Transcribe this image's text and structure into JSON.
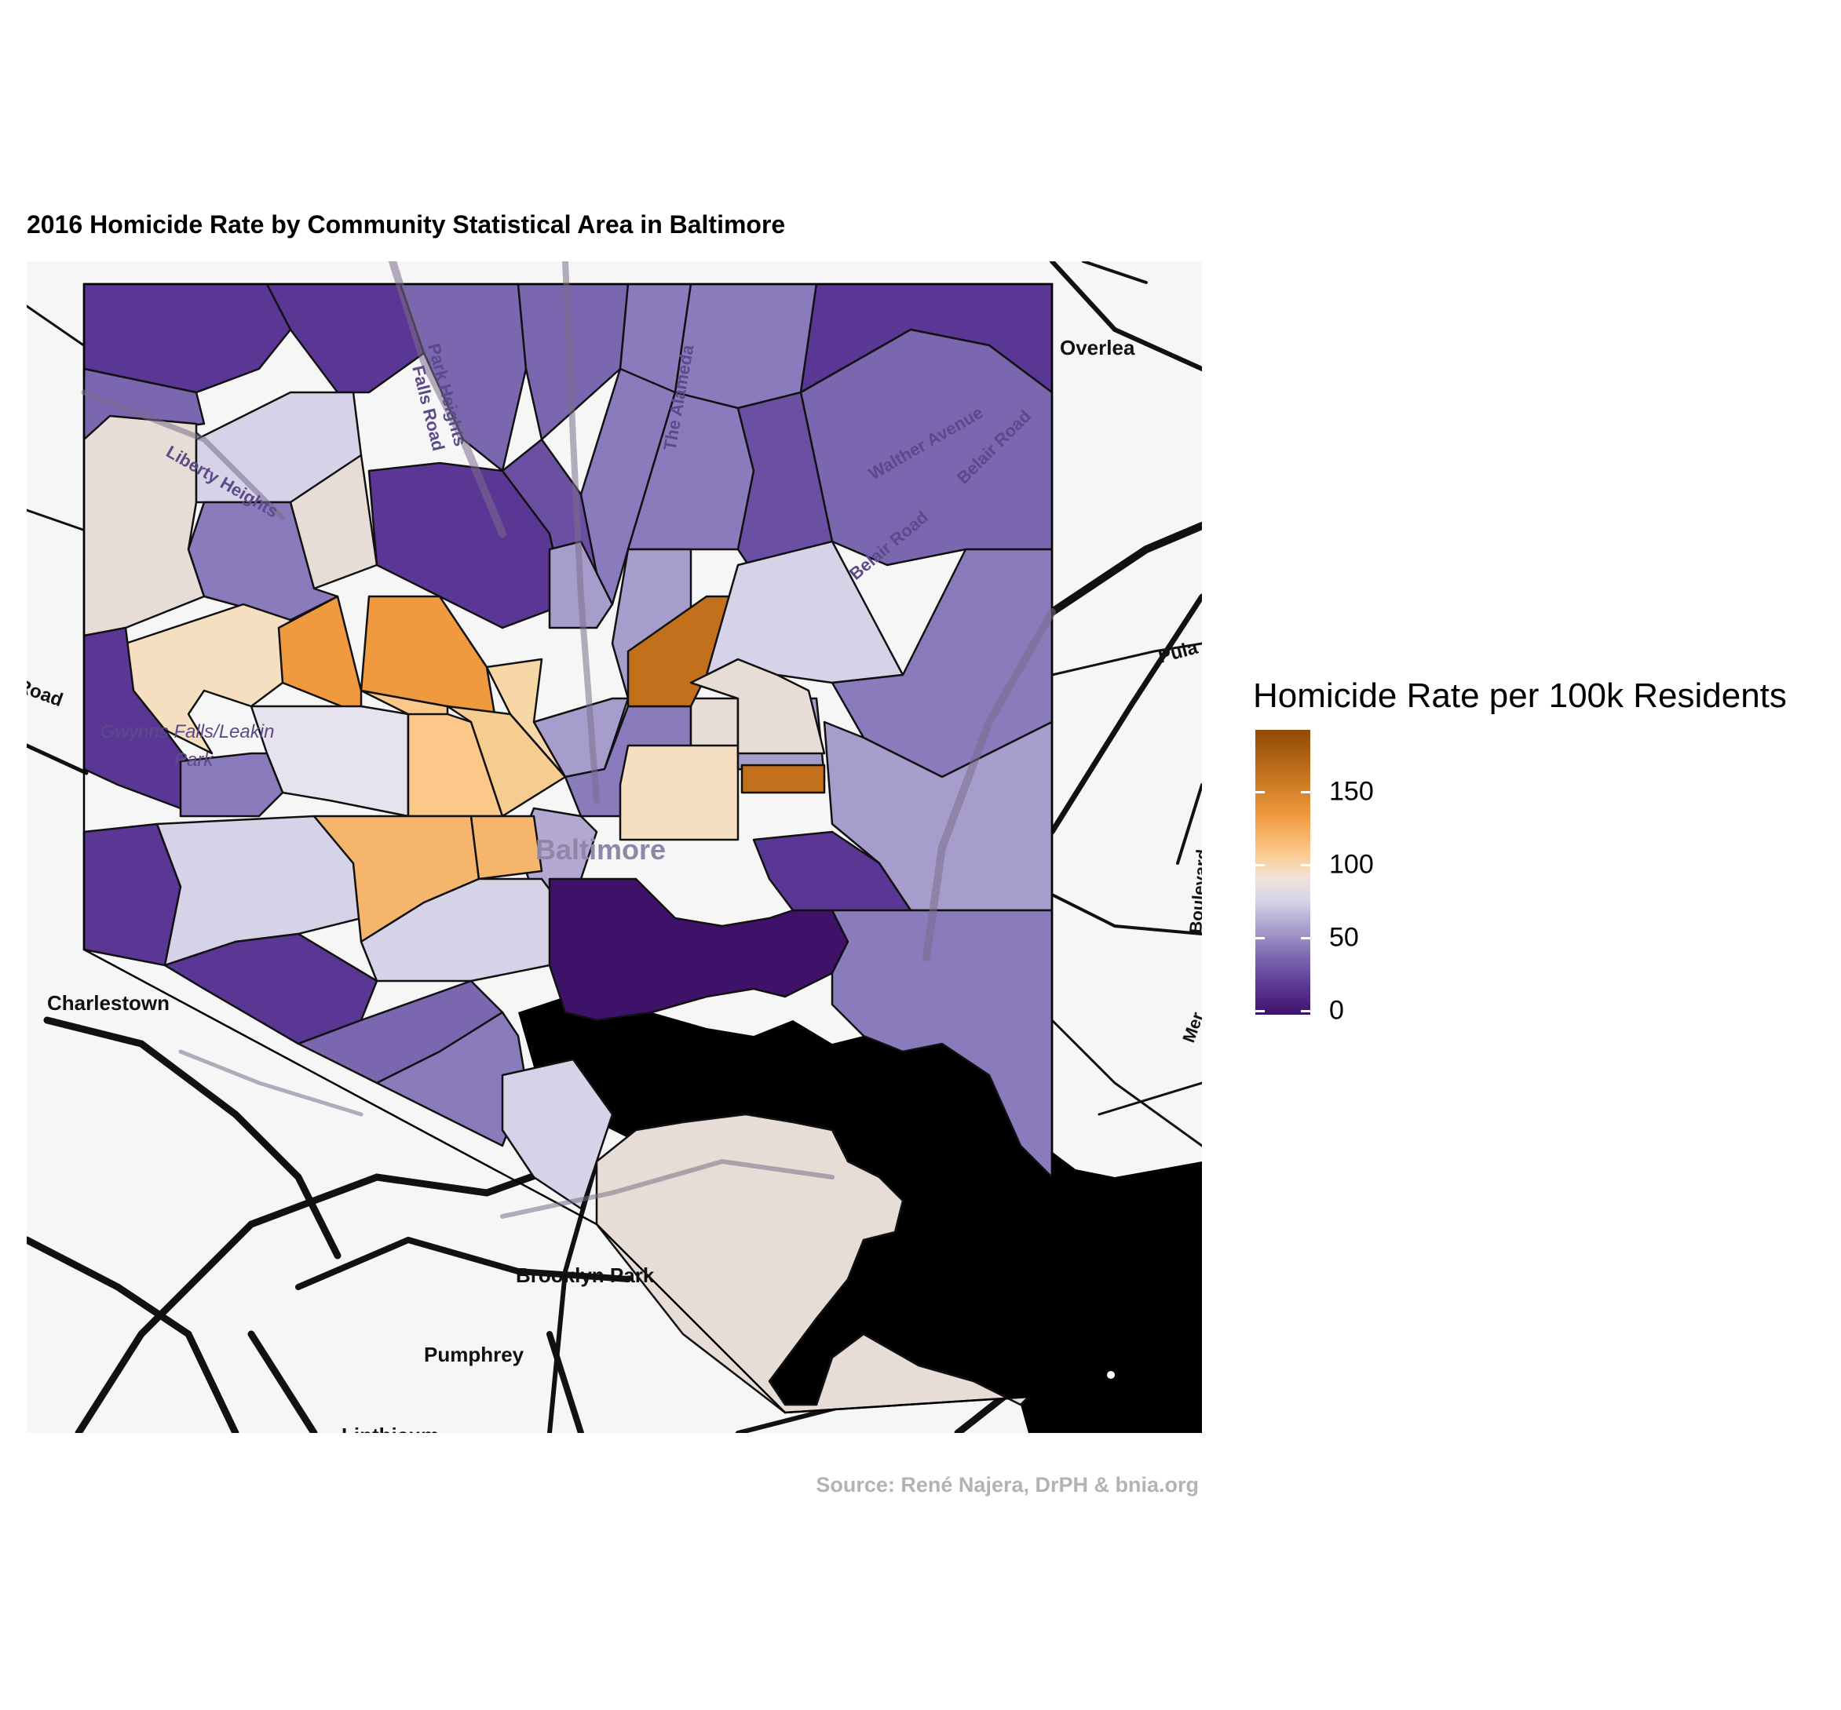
{
  "title": "2016 Homicide Rate by Community Statistical Area in Baltimore",
  "source": "Source: René Najera, DrPH & bnia.org",
  "legend": {
    "title": "Homicide Rate per 100k Residents",
    "ticks": [
      {
        "label": "150",
        "value": 150
      },
      {
        "label": "100",
        "value": 100
      },
      {
        "label": "50",
        "value": 50
      },
      {
        "label": "0",
        "value": 0
      }
    ],
    "range": [
      0,
      190
    ],
    "colors": [
      "#3e1268",
      "#7b66b0",
      "#d6d3e8",
      "#f1e4d8",
      "#fbc88a",
      "#ef9a3f",
      "#8f4a06"
    ]
  },
  "place_labels": {
    "overlea": "Overlea",
    "charlestown": "Charlestown",
    "brooklyn_park": "Brooklyn Park",
    "pumphrey": "Pumphrey",
    "baltimore": "Baltimore",
    "linthicum": "Linthicum",
    "pula": "Pula",
    "road_left": "Road",
    "gwynns_falls": "Gwynns Falls/Leakin",
    "park": "Park"
  },
  "road_labels": {
    "falls_road": "Falls Road",
    "the_alameda": "The Alameda",
    "walther_avenue": "Walther Avenue",
    "belair_road_1": "Belair Road",
    "belair_road_2": "Belair Road",
    "liberty_heights": "Liberty Heights",
    "park_heights": "Park Heights",
    "boulevard": "Boulevard",
    "mer": "Mer"
  }
}
